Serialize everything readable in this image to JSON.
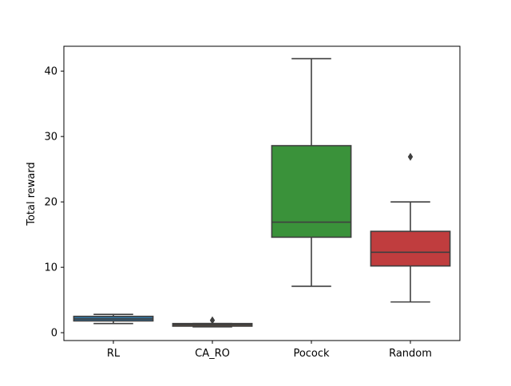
{
  "chart_data": {
    "type": "box",
    "title": "",
    "xlabel": "",
    "ylabel": "Total reward",
    "ylim": [
      -1.2,
      43.8
    ],
    "yticks": [
      0,
      10,
      20,
      30,
      40
    ],
    "grid": false,
    "categories": [
      "RL",
      "CA_RO",
      "Pocock",
      "Random"
    ],
    "boxes": [
      {
        "name": "RL",
        "color": "#3274a1",
        "whisker_low": 1.4,
        "q1": 1.8,
        "median": 2.1,
        "q3": 2.5,
        "whisker_high": 2.8,
        "outliers": []
      },
      {
        "name": "CA_RO",
        "color": "#e1812c",
        "whisker_low": 0.9,
        "q1": 1.0,
        "median": 1.2,
        "q3": 1.4,
        "whisker_high": 1.4,
        "outliers": [
          1.9
        ]
      },
      {
        "name": "Pocock",
        "color": "#3a923a",
        "whisker_low": 7.1,
        "q1": 14.6,
        "median": 16.9,
        "q3": 28.6,
        "whisker_high": 41.9,
        "outliers": []
      },
      {
        "name": "Random",
        "color": "#c03d3e",
        "whisker_low": 4.7,
        "q1": 10.2,
        "median": 12.3,
        "q3": 15.5,
        "whisker_high": 20.0,
        "outliers": [
          26.9
        ]
      }
    ]
  }
}
